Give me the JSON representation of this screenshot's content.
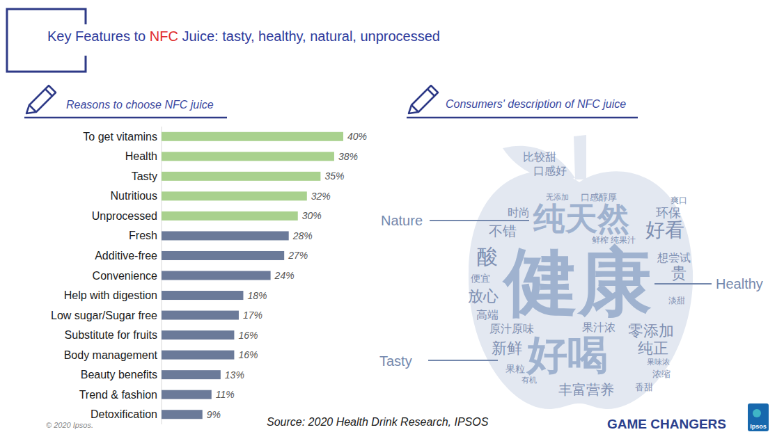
{
  "header": {
    "title": "Key Features to NFC Juice: tasty, healthy, natural, unprocessed",
    "highlight": "NFC"
  },
  "chart_data": {
    "type": "bar",
    "orientation": "horizontal",
    "title": "Reasons to choose NFC juice",
    "categories": [
      "To get vitamins",
      "Health",
      "Tasty",
      "Nutritious",
      "Unprocessed",
      "Fresh",
      "Additive-free",
      "Convenience",
      "Help with digestion",
      "Low sugar/Sugar free",
      "Substitute for fruits",
      "Body management",
      "Beauty benefits",
      "Trend & fashion",
      "Detoxification"
    ],
    "values": [
      40,
      38,
      35,
      32,
      30,
      28,
      27,
      24,
      18,
      17,
      16,
      16,
      13,
      11,
      9
    ],
    "value_labels": [
      "40%",
      "38%",
      "35%",
      "32%",
      "30%",
      "28%",
      "27%",
      "24%",
      "18%",
      "17%",
      "16%",
      "16%",
      "13%",
      "11%",
      "9%"
    ],
    "colors": [
      "#a9d18e",
      "#a9d18e",
      "#a9d18e",
      "#a9d18e",
      "#a9d18e",
      "#6b7a99",
      "#6b7a99",
      "#6b7a99",
      "#6b7a99",
      "#6b7a99",
      "#6b7a99",
      "#6b7a99",
      "#6b7a99",
      "#6b7a99",
      "#6b7a99"
    ],
    "xlim": [
      0,
      45
    ],
    "grid": false,
    "data_labels": true,
    "tick_labels": "y"
  },
  "word_cloud": {
    "title": "Consumers' description of NFC juice",
    "words": [
      "健康",
      "好喝",
      "纯天然",
      "好看",
      "酸",
      "贵",
      "零添加",
      "新鲜",
      "纯正",
      "丰富营养",
      "放心",
      "不错",
      "高端",
      "原汁原味",
      "果汁浓",
      "想尝试",
      "环保",
      "口感好",
      "比较甜",
      "便宜",
      "淡甜",
      "爽口",
      "鲜榨",
      "纯果汁",
      "时尚",
      "口感醇厚",
      "果粒",
      "浓缩",
      "香甜",
      "果味浓",
      "有机",
      "无添加"
    ],
    "callouts": [
      "Nature",
      "Healthy",
      "Tasty"
    ]
  },
  "footer": {
    "copyright": "© 2020 Ipsos.",
    "source": "Source: 2020 Health Drink Research, IPSOS",
    "tagline": "GAME CHANGERS",
    "logo": "Ipsos"
  }
}
